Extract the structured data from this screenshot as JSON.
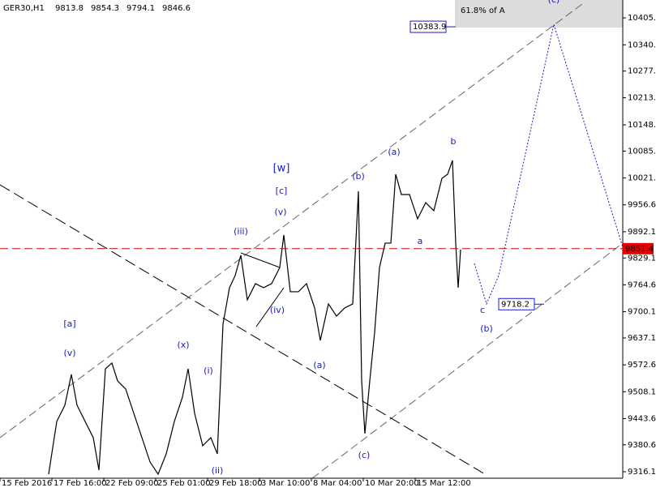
{
  "chart_data": {
    "type": "line",
    "symbol": "GER30,H1",
    "ohlc": [
      9813.8,
      9854.3,
      9794.1,
      9846.6
    ],
    "x": [
      60,
      70,
      80,
      88,
      95,
      105,
      115,
      122,
      130,
      138,
      145,
      155,
      165,
      175,
      185,
      195,
      205,
      215,
      225,
      232,
      240,
      250,
      260,
      268,
      275,
      283,
      290,
      297,
      305,
      315,
      325,
      335,
      345,
      350,
      358,
      368,
      378,
      388,
      395,
      405,
      415,
      425,
      435,
      442,
      446,
      450,
      456,
      462,
      468,
      475,
      482,
      488,
      495,
      505,
      515,
      525,
      535,
      545,
      552,
      558,
      562,
      565,
      568
    ],
    "values": [
      9310.4,
      9436.8,
      9475.7,
      9549.6,
      9475.7,
      9436.8,
      9397.9,
      9320.1,
      9563.2,
      9576.8,
      9534.0,
      9514.6,
      9456.2,
      9397.9,
      9339.6,
      9310.4,
      9359.0,
      9436.8,
      9495.1,
      9563.2,
      9456.2,
      9378.4,
      9397.9,
      9359.0,
      9670.2,
      9757.7,
      9786.9,
      9835.5,
      9728.6,
      9767.5,
      9757.7,
      9767.5,
      9806.3,
      9884.2,
      9748.0,
      9748.0,
      9767.5,
      9709.1,
      9631.3,
      9718.8,
      9689.6,
      9709.1,
      9718.8,
      9989.2,
      9534.0,
      9407.6,
      9534.0,
      9650.8,
      9806.3,
      9864.7,
      9864.7,
      10030.0,
      9981.4,
      9981.4,
      9923.0,
      9961.9,
      9942.5,
      10020.3,
      10030.0,
      10063.1,
      9864.7,
      9757.7,
      9849.1
    ],
    "color": "#000000",
    "projection": {
      "x": [
        585,
        600,
        615,
        683,
        768
      ],
      "values": [
        9816.1,
        9718.8,
        9786.9,
        10389.9,
        9855.0
      ],
      "color": "#1a1acc"
    },
    "last_price": 9851.4,
    "target_levels": [
      10383.9,
      9718.2
    ],
    "zone_label": "61.8% of A",
    "annotations": [
      "[a]",
      "(v)",
      "(x)",
      "(i)",
      "(ii)",
      "(iii)",
      "(iv)",
      "(v)",
      "[c]",
      "[w]",
      "(a)",
      "(b)",
      "(c)",
      "(a)",
      "b",
      "a",
      "c",
      "(b)",
      "(c)"
    ],
    "xlim": [
      0,
      768
    ],
    "xticks": [
      {
        "value": 0,
        "label": "15 Feb 2016"
      },
      {
        "value": 64,
        "label": "17 Feb 16:00"
      },
      {
        "value": 128,
        "label": "22 Feb 09:00"
      },
      {
        "value": 192,
        "label": "25 Feb 01:00"
      },
      {
        "value": 256,
        "label": "29 Feb 18:00"
      },
      {
        "value": 320,
        "label": "3 Mar 10:00"
      },
      {
        "value": 384,
        "label": "8 Mar 04:00"
      },
      {
        "value": 448,
        "label": "10 Mar 20:00"
      },
      {
        "value": 512,
        "label": "15 Mar 12:00"
      }
    ],
    "ylim": [
      9300.5,
      10448.2
    ],
    "yticks": [
      10405.4,
      10340.6,
      10277.6,
      10213.6,
      10148.6,
      10085.6,
      10021.1,
      9956.6,
      9892.1,
      9829.1,
      9764.6,
      9700.1,
      9637.1,
      9572.6,
      9508.1,
      9443.6,
      9380.6,
      9316.1
    ]
  }
}
